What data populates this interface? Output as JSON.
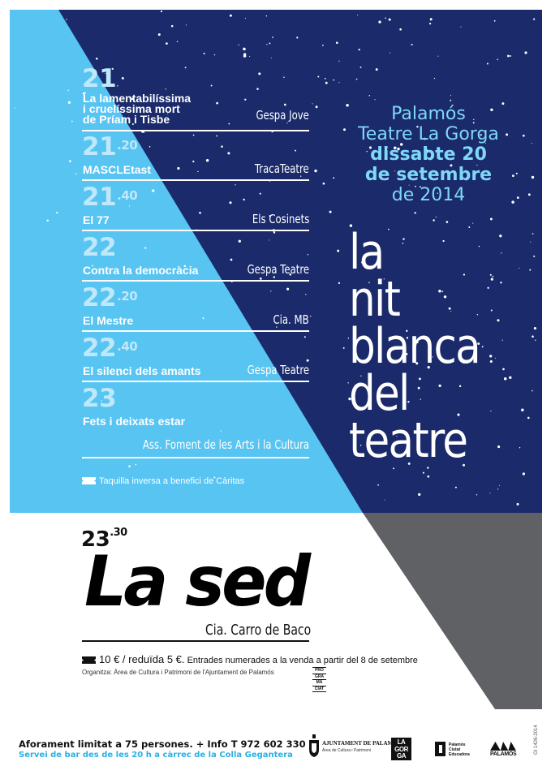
{
  "colors": {
    "night_blue": "#1a2a6b",
    "spotlight_blue": "#58c4f2",
    "stage_gray": "#606164",
    "time_color": "#bfe9fb",
    "venue_color": "#7fd8f7"
  },
  "program": [
    {
      "hour": "21",
      "minutes": "",
      "title": "La lamentabilíssima\ni cruelíssima mort\nde Príam i Tisbe",
      "company": "Gespa Jove"
    },
    {
      "hour": "21",
      "minutes": ".20",
      "title": "MASCLEtast",
      "company": "TracaTeatre"
    },
    {
      "hour": "21",
      "minutes": ".40",
      "title": "El 77",
      "company": "Els Cosinets"
    },
    {
      "hour": "22",
      "minutes": "",
      "title": "Contra la democràcia",
      "company": "Gespa Teatre"
    },
    {
      "hour": "22",
      "minutes": ".20",
      "title": "El Mestre",
      "company": "Cia. MB"
    },
    {
      "hour": "22",
      "minutes": ".40",
      "title": "El silenci dels amants",
      "company": "Gespa Teatre"
    },
    {
      "hour": "23",
      "minutes": "",
      "title": "Fets i deixats estar",
      "company": "Ass. Foment de les Arts i la Cultura"
    }
  ],
  "taquilla": "Taquilla inversa a benefici de Càritas",
  "venue": {
    "town": "Palamós",
    "theatre": "Teatre La Gorga",
    "date_line1": "dissabte 20",
    "date_line2": "de setembre",
    "year": "de 2014"
  },
  "event_title": {
    "line1": "la",
    "line2": "nit",
    "line3": "blanca",
    "line4": "del",
    "line5": "teatre"
  },
  "headline": {
    "hour": "23",
    "minutes": ".30",
    "title": "La sed",
    "company": "Cia. Carro de Baco"
  },
  "prices": {
    "main": "10 € / reduïda 5 €.",
    "detail": "Entrades numerades a la venda a partir del 8 de setembre"
  },
  "organitza": "Organitza: Àrea de Cultura i Patrimoni de l'Ajuntament de Palamós",
  "prog_badge": [
    "PRO",
    "GRA",
    "MA",
    "CIAT"
  ],
  "footer": {
    "aforament": "Aforament limitat a 75 persones. + Info T 972 602 330",
    "servei": "Servei de bar des de les 20 h a càrrec de la Colla Gegantera"
  },
  "logos": {
    "ajuntament_line1": "AJUNTAMENT DE PALAMÓS",
    "ajuntament_line2": "Àrea de Cultura i Patrimoni",
    "gorga": [
      "LA",
      "GOR",
      "GA"
    ],
    "ciutat": [
      "Palamós",
      "Ciutat",
      "Educadora"
    ],
    "palamos": "PALAMÓS"
  },
  "legal_code": "GI 1426-2014"
}
